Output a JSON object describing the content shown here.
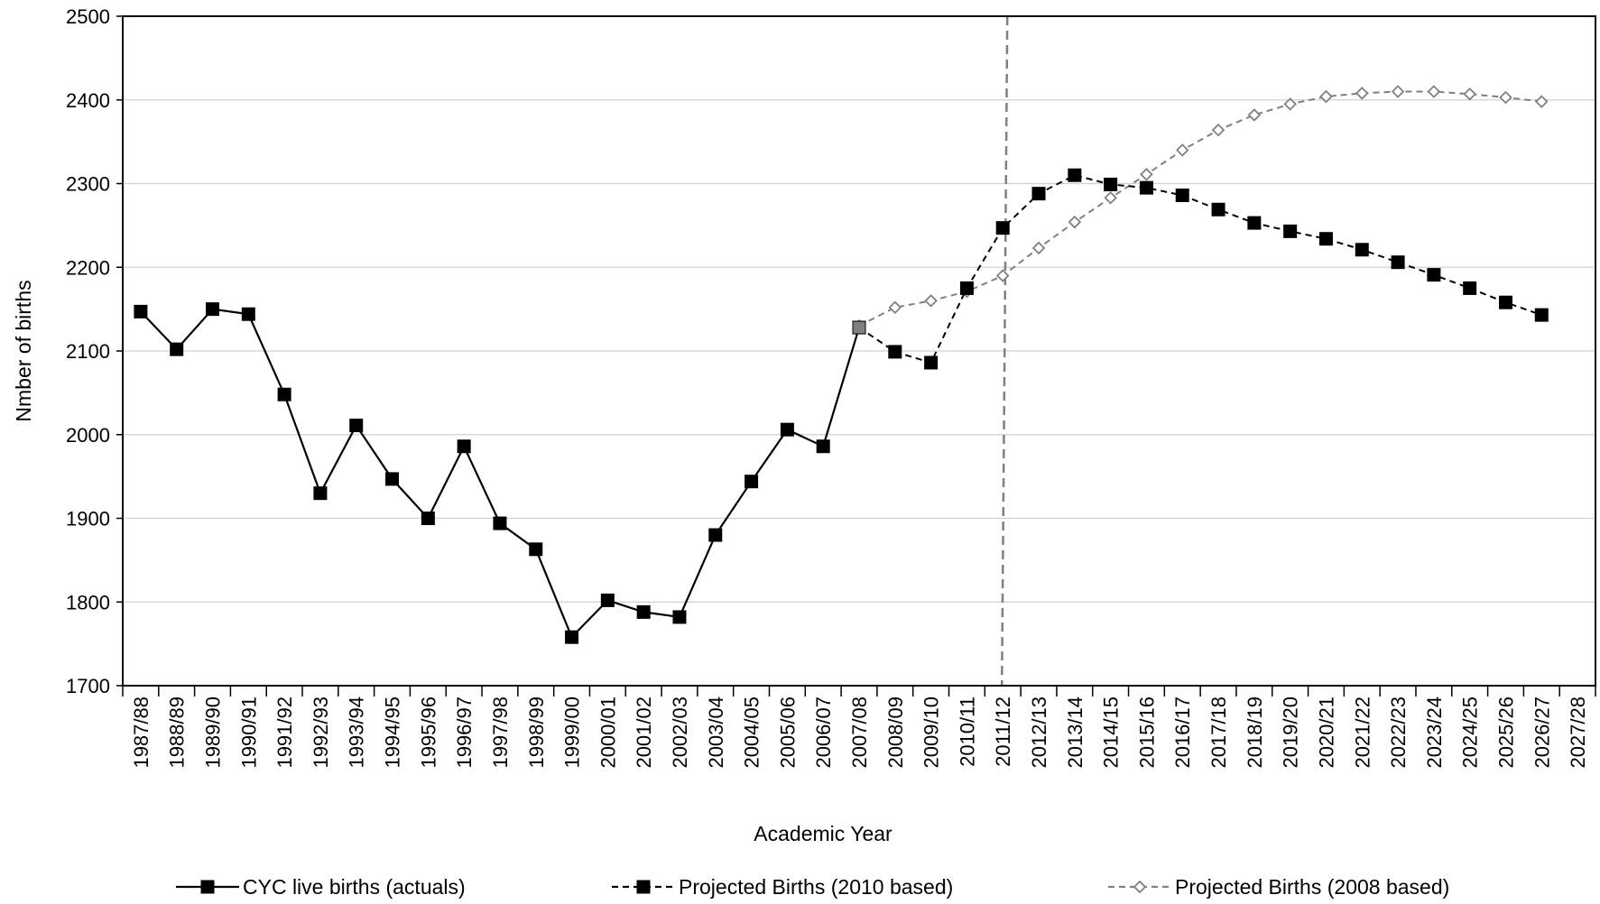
{
  "chart_data": {
    "type": "line",
    "title": "",
    "xlabel": "Academic Year",
    "ylabel": "Nmber of births",
    "ylim": [
      1700,
      2500
    ],
    "yticks": [
      1700,
      1800,
      1900,
      2000,
      2100,
      2200,
      2300,
      2400,
      2500
    ],
    "grid": "horizontal",
    "legend_position": "bottom",
    "reference_line": {
      "x": "2011/12",
      "style": "dashed",
      "color": "#808080"
    },
    "categories": [
      "1987/88",
      "1988/89",
      "1989/90",
      "1990/91",
      "1991/92",
      "1992/93",
      "1993/94",
      "1994/95",
      "1995/96",
      "1996/97",
      "1997/98",
      "1998/99",
      "1999/00",
      "2000/01",
      "2001/02",
      "2002/03",
      "2003/04",
      "2004/05",
      "2005/06",
      "2006/07",
      "2007/08",
      "2008/09",
      "2009/10",
      "2010/11",
      "2011/12",
      "2012/13",
      "2013/14",
      "2014/15",
      "2015/16",
      "2016/17",
      "2017/18",
      "2018/19",
      "2019/20",
      "2020/21",
      "2021/22",
      "2022/23",
      "2023/24",
      "2024/25",
      "2025/26",
      "2026/27",
      "2027/28"
    ],
    "series": [
      {
        "name": "CYC live births (actuals)",
        "style": "solid",
        "color": "#000000",
        "marker": "square",
        "values": [
          2147,
          2102,
          2150,
          2144,
          2048,
          1930,
          2011,
          1947,
          1900,
          1986,
          1894,
          1863,
          1758,
          1802,
          1788,
          1782,
          1880,
          1944,
          2006,
          1986,
          2128,
          null,
          null,
          null,
          null,
          null,
          null,
          null,
          null,
          null,
          null,
          null,
          null,
          null,
          null,
          null,
          null,
          null,
          null,
          null,
          null
        ]
      },
      {
        "name": "Projected Births (2010 based)",
        "style": "dashed",
        "color": "#000000",
        "marker": "square",
        "values": [
          null,
          null,
          null,
          null,
          null,
          null,
          null,
          null,
          null,
          null,
          null,
          null,
          null,
          null,
          null,
          null,
          null,
          null,
          null,
          null,
          2128,
          2099,
          2086,
          2175,
          2247,
          2288,
          2310,
          2299,
          2295,
          2286,
          2269,
          2253,
          2243,
          2234,
          2221,
          2206,
          2191,
          2175,
          2158,
          2143,
          null
        ]
      },
      {
        "name": "Projected Births (2008 based)",
        "style": "dashed",
        "color": "#808080",
        "marker": "diamond-open",
        "values": [
          null,
          null,
          null,
          null,
          null,
          null,
          null,
          null,
          null,
          null,
          null,
          null,
          null,
          null,
          null,
          null,
          null,
          null,
          null,
          null,
          2130,
          2152,
          2160,
          2171,
          2190,
          2223,
          2254,
          2283,
          2311,
          2340,
          2364,
          2382,
          2395,
          2404,
          2408,
          2410,
          2410,
          2407,
          2403,
          2398,
          null
        ]
      }
    ]
  }
}
